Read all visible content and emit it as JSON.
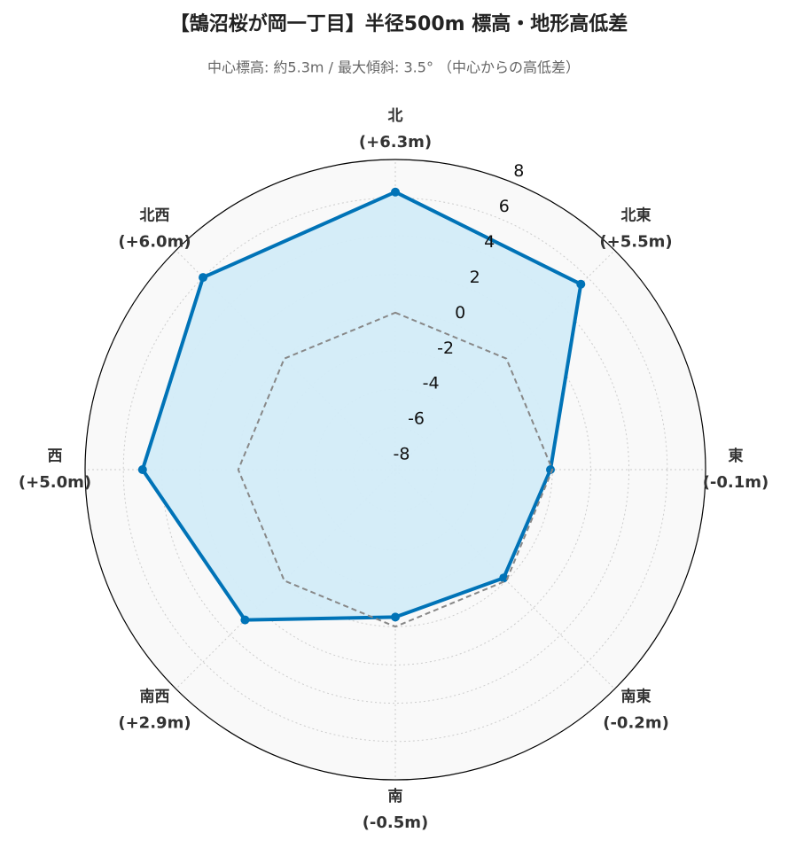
{
  "chart_data": {
    "type": "radar",
    "title": "【鵠沼桜が岡一丁目】半径500m 標高・地形高低差",
    "subtitle": "中心標高: 約5.3m / 最大傾斜: 3.5° （中心からの高低差）",
    "categories": [
      "北",
      "北東",
      "東",
      "南東",
      "南",
      "南西",
      "西",
      "北西"
    ],
    "series": [
      {
        "values": [
          6.3,
          5.5,
          -0.1,
          -0.2,
          -0.5,
          2.9,
          5.0,
          6.0
        ],
        "value_labels": [
          "(+6.3m)",
          "(+5.5m)",
          "(-0.1m)",
          "(-0.2m)",
          "(-0.5m)",
          "(+2.9m)",
          "(+5.0m)",
          "(+6.0m)"
        ],
        "color": "#0073b7",
        "fill": "#d3ecf8"
      },
      {
        "values": [
          0,
          0,
          0,
          0,
          0,
          0,
          0,
          0
        ],
        "color": "#888888",
        "dashed": true
      }
    ],
    "ylim": [
      -8.2,
      8
    ],
    "yticks": [
      -8,
      -6,
      -4,
      -2,
      0,
      2,
      4,
      6,
      8
    ],
    "grid": true
  }
}
